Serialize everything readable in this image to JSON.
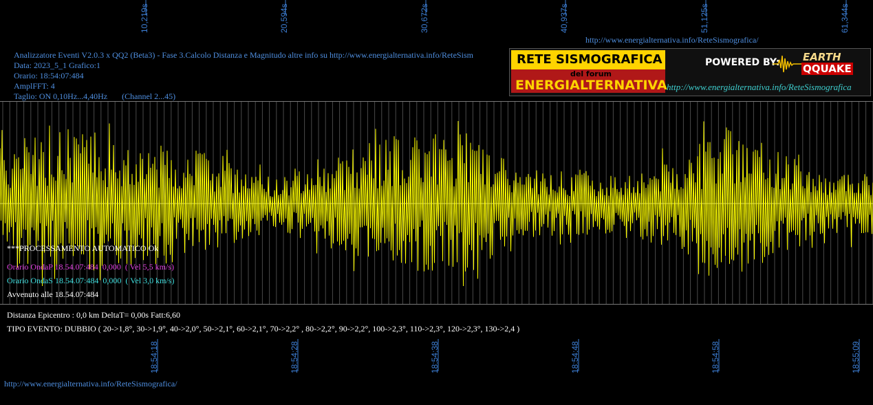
{
  "colors": {
    "background": "#000000",
    "trace": "#ffff00",
    "grid": "#5a5a5a",
    "axis_label": "#3d7fd6",
    "info": "#4f8fe0",
    "onda_p": "#e040e0",
    "onda_s": "#40e0e0"
  },
  "top_axis": {
    "labels": [
      "10,219s",
      "20,594s",
      "30,672s",
      "40,937s",
      "51,125s",
      "61,344s"
    ]
  },
  "bottom_axis": {
    "labels": [
      "18:54:18",
      "18:54:28",
      "18:54:38",
      "18:54:48",
      "18:54:58",
      "18:55:09"
    ]
  },
  "top_url": "http://www.energialternativa.info/ReteSismografica/",
  "header": {
    "line1": "Analizzatore Eventi V2.0.3 x QQ2 (Beta3) - Fase 3.Calcolo Distanza e Magnitudo altre info su http://www.energialternativa.info/ReteSism",
    "line2": "Data: 2023_5_1 Grafico:1",
    "line3": "Orario: 18:54:07:484",
    "line4": "AmplFFT: 4",
    "line5": "Taglio: ON 0,10Hz...4,40Hz       (Channel 2...45)"
  },
  "logo": {
    "title": "RETE SISMOGRAFICA",
    "subtitle": "del forum",
    "name": "ENERGIALTERNATIVA",
    "powered": "POWERED BY:",
    "eq_top": "EARTH",
    "eq_bottom": "QQUAKE",
    "url": "http://www.energialternativa.info/ReteSismografica"
  },
  "processing": {
    "status": "***PROCESSAMENTO AUTOMATICO Ok",
    "onda_p": "Orario OndaP 18.54.07:484  0,000  ( Vel 5,5 km/s)",
    "onda_s": "Orario OndaS 18.54.07:484  0,000  ( Vel 3,0 km/s)",
    "avvenuto": "Avvenuto alle 18.54.07:484"
  },
  "results": {
    "distanza": "Distanza Epicentro : 0,0 km DeltaT= 0,00s  Fatt:6,60",
    "tipo": "TIPO EVENTO: DUBBIO ( 20->1,8°, 30->1,9°, 40->2,0°, 50->2,1°, 60->2,1°, 70->2,2° , 80->2,2°, 90->2,2°, 100->2,3°, 110->2,3°, 120->2,3°, 130->2,4 )"
  },
  "bottom_url": "http://www.energialternativa.info/ReteSismografica/"
}
